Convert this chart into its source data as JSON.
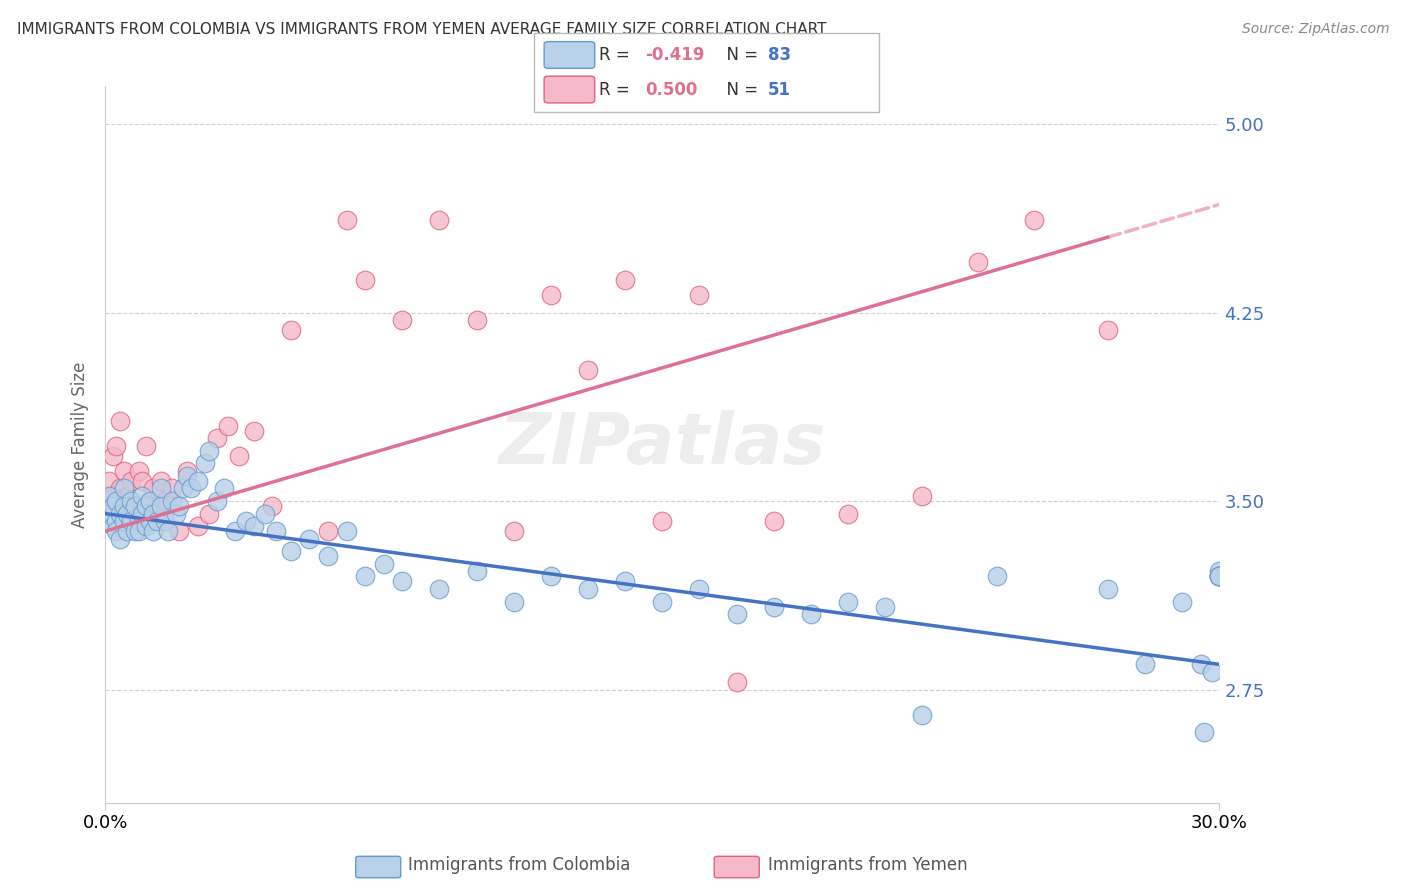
{
  "title": "IMMIGRANTS FROM COLOMBIA VS IMMIGRANTS FROM YEMEN AVERAGE FAMILY SIZE CORRELATION CHART",
  "source": "Source: ZipAtlas.com",
  "ylabel": "Average Family Size",
  "xlim": [
    0.0,
    0.3
  ],
  "ylim": [
    2.3,
    5.15
  ],
  "yticks": [
    2.75,
    3.5,
    4.25,
    5.0
  ],
  "xticks": [
    0.0,
    0.3
  ],
  "xticklabels": [
    "0.0%",
    "30.0%"
  ],
  "right_ytick_color": "#4472c4",
  "colombia_color": "#b8d0e8",
  "colombia_edge": "#6699cc",
  "yemen_color": "#f4b8c8",
  "yemen_edge": "#e06080",
  "colombia_R": -0.419,
  "colombia_N": 83,
  "yemen_R": 0.5,
  "yemen_N": 51,
  "colombia_line_color": "#4472c4",
  "yemen_line_color": "#e07090",
  "colombia_scatter_x": [
    0.001,
    0.001,
    0.002,
    0.002,
    0.003,
    0.003,
    0.003,
    0.004,
    0.004,
    0.005,
    0.005,
    0.005,
    0.006,
    0.006,
    0.007,
    0.007,
    0.008,
    0.008,
    0.009,
    0.009,
    0.01,
    0.01,
    0.011,
    0.011,
    0.012,
    0.012,
    0.013,
    0.013,
    0.014,
    0.015,
    0.015,
    0.016,
    0.017,
    0.018,
    0.019,
    0.02,
    0.021,
    0.022,
    0.023,
    0.025,
    0.027,
    0.028,
    0.03,
    0.032,
    0.035,
    0.038,
    0.04,
    0.043,
    0.046,
    0.05,
    0.055,
    0.06,
    0.065,
    0.07,
    0.075,
    0.08,
    0.09,
    0.1,
    0.11,
    0.12,
    0.13,
    0.14,
    0.15,
    0.16,
    0.17,
    0.18,
    0.19,
    0.2,
    0.21,
    0.22,
    0.24,
    0.27,
    0.28,
    0.29,
    0.295,
    0.296,
    0.298,
    0.3,
    0.3,
    0.3,
    0.3,
    0.3,
    0.3
  ],
  "colombia_scatter_y": [
    3.45,
    3.52,
    3.4,
    3.48,
    3.42,
    3.5,
    3.38,
    3.45,
    3.35,
    3.48,
    3.42,
    3.55,
    3.38,
    3.45,
    3.42,
    3.5,
    3.38,
    3.48,
    3.42,
    3.38,
    3.45,
    3.52,
    3.4,
    3.48,
    3.42,
    3.5,
    3.45,
    3.38,
    3.42,
    3.48,
    3.55,
    3.42,
    3.38,
    3.5,
    3.45,
    3.48,
    3.55,
    3.6,
    3.55,
    3.58,
    3.65,
    3.7,
    3.5,
    3.55,
    3.38,
    3.42,
    3.4,
    3.45,
    3.38,
    3.3,
    3.35,
    3.28,
    3.38,
    3.2,
    3.25,
    3.18,
    3.15,
    3.22,
    3.1,
    3.2,
    3.15,
    3.18,
    3.1,
    3.15,
    3.05,
    3.08,
    3.05,
    3.1,
    3.08,
    2.65,
    3.2,
    3.15,
    2.85,
    3.1,
    2.85,
    2.58,
    2.82,
    3.22,
    3.2,
    3.2,
    3.2,
    3.2,
    3.2
  ],
  "yemen_scatter_x": [
    0.001,
    0.001,
    0.002,
    0.002,
    0.003,
    0.003,
    0.004,
    0.004,
    0.005,
    0.005,
    0.006,
    0.007,
    0.008,
    0.009,
    0.01,
    0.011,
    0.012,
    0.013,
    0.014,
    0.015,
    0.016,
    0.018,
    0.02,
    0.022,
    0.025,
    0.028,
    0.03,
    0.033,
    0.036,
    0.04,
    0.045,
    0.05,
    0.06,
    0.065,
    0.07,
    0.08,
    0.09,
    0.1,
    0.11,
    0.12,
    0.13,
    0.14,
    0.15,
    0.16,
    0.17,
    0.18,
    0.2,
    0.22,
    0.235,
    0.25,
    0.27
  ],
  "yemen_scatter_y": [
    3.48,
    3.58,
    3.52,
    3.68,
    3.5,
    3.72,
    3.55,
    3.82,
    3.48,
    3.62,
    3.52,
    3.58,
    3.48,
    3.62,
    3.58,
    3.72,
    3.5,
    3.55,
    3.48,
    3.58,
    3.5,
    3.55,
    3.38,
    3.62,
    3.4,
    3.45,
    3.75,
    3.8,
    3.68,
    3.78,
    3.48,
    4.18,
    3.38,
    4.62,
    4.38,
    4.22,
    4.62,
    4.22,
    3.38,
    4.32,
    4.02,
    4.38,
    3.42,
    4.32,
    2.78,
    3.42,
    3.45,
    3.52,
    4.45,
    4.62,
    4.18
  ],
  "watermark": "ZIPatlas",
  "watermark_fontsize": 52
}
